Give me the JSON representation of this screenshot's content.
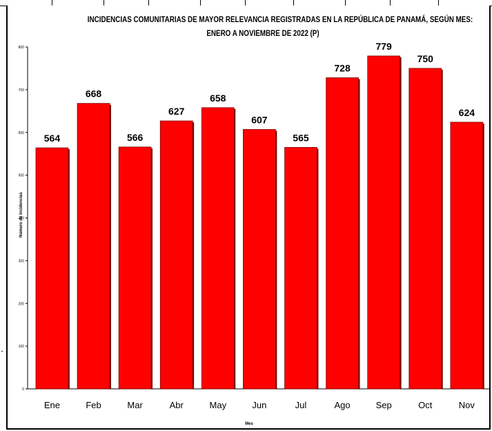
{
  "title_line1": "INCIDENCIAS COMUNITARIAS DE MAYOR RELEVANCIA REGISTRADAS EN LA REPÚBLICA DE PANAMÁ, SEGÚN MES:",
  "title_line2": "ENERO A NOVIEMBRE DE 2022 (P)",
  "side_mark": "•",
  "chart_data": {
    "type": "bar",
    "title": "INCIDENCIAS COMUNITARIAS DE MAYOR RELEVANCIA REGISTRADAS EN LA REPÚBLICA DE PANAMÁ, SEGÚN MES: ENERO A NOVIEMBRE DE 2022 (P)",
    "xlabel": "Mes",
    "ylabel": "Número de incidencias",
    "categories": [
      "Ene",
      "Feb",
      "Mar",
      "Abr",
      "May",
      "Jun",
      "Jul",
      "Ago",
      "Sep",
      "Oct",
      "Nov"
    ],
    "values": [
      564,
      668,
      566,
      627,
      658,
      607,
      565,
      728,
      779,
      750,
      624
    ],
    "yticks": [
      "0",
      "100",
      "200",
      "300",
      "400",
      "500",
      "600",
      "700",
      "800"
    ],
    "ylim": [
      0,
      800
    ],
    "grid": false,
    "legend": "none",
    "bar_color": "#ff0000",
    "bar_edge_color": "#7a0000"
  }
}
